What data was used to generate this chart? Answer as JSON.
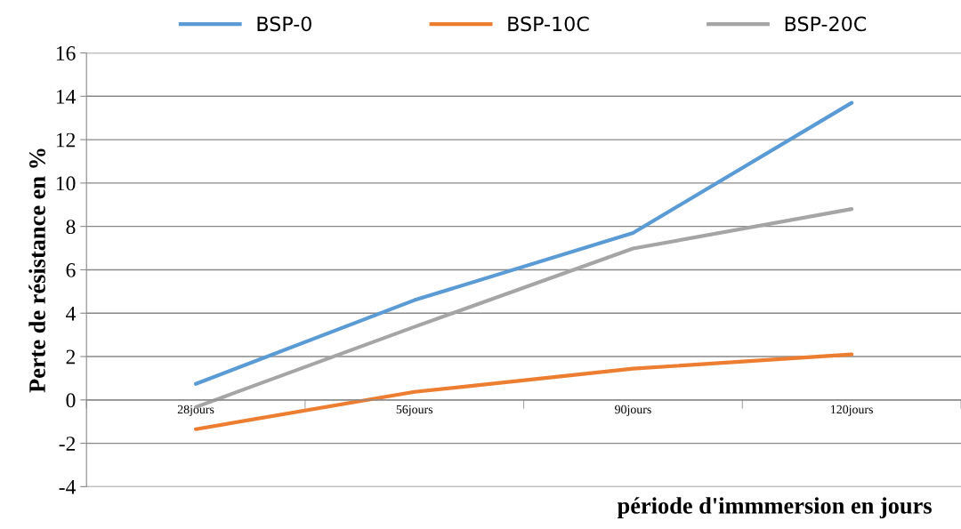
{
  "chart_data": {
    "type": "line",
    "ylabel": "Perte de résistance en %",
    "xlabel": "période d'immmersion en jours",
    "categories": [
      "28jours",
      "56jours",
      "90jours",
      "120jours"
    ],
    "series": [
      {
        "name": "BSP-0",
        "color": "#5b9bd5",
        "values": [
          0.74,
          4.6,
          7.7,
          13.7
        ]
      },
      {
        "name": "BSP-10C",
        "color": "#ed7d31",
        "values": [
          -1.35,
          0.37,
          1.44,
          2.1
        ]
      },
      {
        "name": "BSP-20C",
        "color": "#a5a5a5",
        "values": [
          -0.33,
          3.37,
          6.98,
          8.8
        ]
      }
    ],
    "ylim": [
      -4,
      16
    ],
    "yticks": [
      -4,
      -2,
      0,
      2,
      4,
      6,
      8,
      10,
      12,
      14,
      16
    ],
    "grid": "y",
    "legend": "top",
    "marker": "none",
    "line_style": "solid"
  }
}
